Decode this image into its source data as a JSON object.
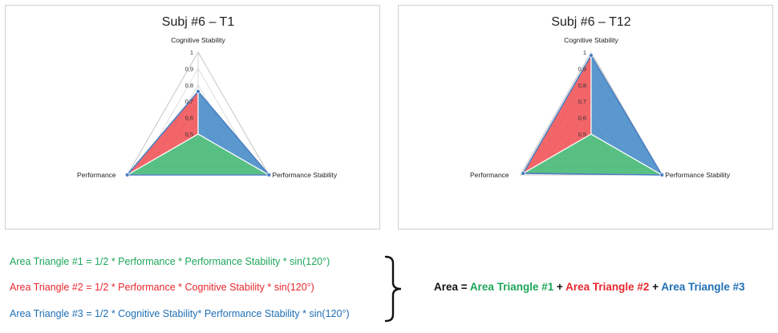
{
  "chart_data": [
    {
      "type": "radar",
      "title": "Subj #6 – T1",
      "axes": [
        "Cognitive Stability",
        "Performance Stability",
        "Performance"
      ],
      "radial_ticks": [
        "0,5",
        "0,6",
        "0,7",
        "0,8",
        "0,9",
        "1"
      ],
      "rlim": [
        0.5,
        1.0
      ],
      "values": {
        "Cognitive Stability": 0.76,
        "Performance Stability": 1.0,
        "Performance": 1.0
      },
      "triangles": [
        {
          "name": "Area Triangle #1",
          "color": "#3cb56f",
          "between": [
            "Performance",
            "Performance Stability"
          ]
        },
        {
          "name": "Area Triangle #2",
          "color": "#f04a4f",
          "between": [
            "Performance",
            "Cognitive Stability"
          ]
        },
        {
          "name": "Area Triangle #3",
          "color": "#3d86c6",
          "between": [
            "Cognitive Stability",
            "Performance Stability"
          ]
        }
      ]
    },
    {
      "type": "radar",
      "title": "Subj #6 – T12",
      "axes": [
        "Cognitive Stability",
        "Performance Stability",
        "Performance"
      ],
      "radial_ticks": [
        "0,5",
        "0,6",
        "0,7",
        "0,8",
        "0,9",
        "1"
      ],
      "rlim": [
        0.5,
        1.0
      ],
      "values": {
        "Cognitive Stability": 0.98,
        "Performance Stability": 1.0,
        "Performance": 0.98
      },
      "triangles": [
        {
          "name": "Area Triangle #1",
          "color": "#3cb56f",
          "between": [
            "Performance",
            "Performance Stability"
          ]
        },
        {
          "name": "Area Triangle #2",
          "color": "#f04a4f",
          "between": [
            "Performance",
            "Cognitive Stability"
          ]
        },
        {
          "name": "Area Triangle #3",
          "color": "#3d86c6",
          "between": [
            "Cognitive Stability",
            "Performance Stability"
          ]
        }
      ]
    }
  ],
  "formulas": {
    "triangle1": "Area Triangle #1 = 1/2 * Performance * Performance Stability * sin(120°)",
    "triangle2": "Area Triangle #2 = 1/2 * Performance * Cognitive Stability * sin(120°)",
    "triangle3": "Area Triangle #3 = 1/2 * Cognitive Stability* Performance Stability * sin(120°)"
  },
  "area_sum": {
    "lhs": "Area",
    "eq": " = ",
    "t1": "Area Triangle #1",
    "plus1": " + ",
    "t2": "Area Triangle #2",
    "plus2": " + ",
    "t3": "Area Triangle #3"
  },
  "colors": {
    "green": "#1ea65a",
    "red": "#e8282e",
    "blue": "#1f6fb5"
  }
}
